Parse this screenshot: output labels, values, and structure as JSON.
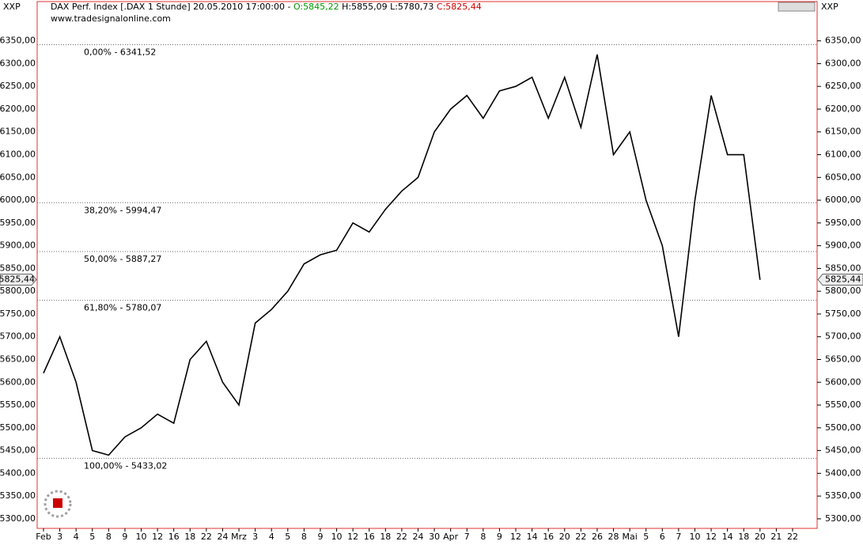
{
  "header": {
    "menu_left": "XXP",
    "menu_right": "XXP",
    "instrument": "DAX Perf. Index [.DAX  1 Stunde] 20.05.2010 17:00:00 -",
    "open": "O:5845,22",
    "high": "H:5855,09",
    "low": "L:5780,73",
    "close": "C:5825,44",
    "source": "www.tradesignalonline.com"
  },
  "chart_data": {
    "type": "line",
    "categories": [
      "Feb",
      "3",
      "4",
      "5",
      "8",
      "9",
      "10",
      "12",
      "16",
      "18",
      "22",
      "24",
      "Mrz",
      "3",
      "4",
      "5",
      "8",
      "9",
      "10",
      "12",
      "16",
      "18",
      "22",
      "24",
      "30",
      "Apr",
      "7",
      "8",
      "9",
      "12",
      "14",
      "16",
      "20",
      "22",
      "26",
      "28",
      "Mai",
      "5",
      "6",
      "7",
      "10",
      "12",
      "14",
      "18",
      "20",
      "21",
      "22"
    ],
    "series": [
      {
        "name": "DAX Perf. Index",
        "color": "#000000",
        "values": [
          5620,
          5700,
          5600,
          5450,
          5440,
          5480,
          5500,
          5530,
          5510,
          5650,
          5690,
          5600,
          5550,
          5730,
          5760,
          5800,
          5860,
          5880,
          5890,
          5950,
          5930,
          5980,
          6020,
          6050,
          6150,
          6200,
          6230,
          6180,
          6240,
          6250,
          6270,
          6180,
          6270,
          6160,
          6320,
          6100,
          6150,
          6000,
          5900,
          5700,
          6000,
          6230,
          6100,
          6100,
          5825,
          null,
          null
        ]
      }
    ],
    "ylim": [
      5279,
      6405
    ],
    "yticks": [
      {
        "value": 5300,
        "label": "5300,00"
      },
      {
        "value": 5350,
        "label": "5350,00"
      },
      {
        "value": 5400,
        "label": "5400,00"
      },
      {
        "value": 5450,
        "label": "5450,00"
      },
      {
        "value": 5500,
        "label": "5500,00"
      },
      {
        "value": 5550,
        "label": "5550,00"
      },
      {
        "value": 5600,
        "label": "5600,00"
      },
      {
        "value": 5650,
        "label": "5650,00"
      },
      {
        "value": 5700,
        "label": "5700,00"
      },
      {
        "value": 5750,
        "label": "5750,00"
      },
      {
        "value": 5800,
        "label": "5800,00"
      },
      {
        "value": 5850,
        "label": "5850,00"
      },
      {
        "value": 5900,
        "label": "5900,00"
      },
      {
        "value": 5950,
        "label": "5950,00"
      },
      {
        "value": 6000,
        "label": "6000,00"
      },
      {
        "value": 6050,
        "label": "6050,00"
      },
      {
        "value": 6100,
        "label": "6100,00"
      },
      {
        "value": 6150,
        "label": "6150,00"
      },
      {
        "value": 6200,
        "label": "6200,00"
      },
      {
        "value": 6250,
        "label": "6250,00"
      },
      {
        "value": 6300,
        "label": "6300,00"
      },
      {
        "value": 6350,
        "label": "6350,00"
      }
    ],
    "fib_levels": [
      {
        "value": 6341.52,
        "label": "0,00% - 6341,52"
      },
      {
        "value": 5994.47,
        "label": "38,20% - 5994,47"
      },
      {
        "value": 5887.27,
        "label": "50,00% - 5887,27"
      },
      {
        "value": 5780.07,
        "label": "61,80% - 5780,07"
      },
      {
        "value": 5433.02,
        "label": "100,00% - 5433,02"
      }
    ],
    "last_price": {
      "value": 5825.44,
      "label": "5825,44"
    }
  }
}
